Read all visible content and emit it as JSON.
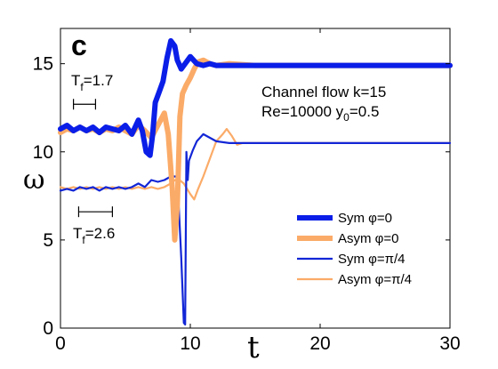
{
  "chart_data": {
    "type": "line",
    "panel_label": "c",
    "xlabel": "t",
    "ylabel": "ω",
    "xlim": [
      0,
      30
    ],
    "ylim": [
      0,
      17
    ],
    "xticks": [
      0,
      10,
      20,
      30
    ],
    "yticks": [
      0,
      5,
      10,
      15
    ],
    "annotations": {
      "flow_line1": "Channel flow k=15",
      "flow_line2_prefix": "Re=10000 y",
      "flow_line2_sub": "0",
      "flow_line2_suffix": "=0.5",
      "period_top_prefix": "T",
      "period_top_sub": "f",
      "period_top_value": "=1.7",
      "period_bottom_prefix": "T",
      "period_bottom_sub": "f",
      "period_bottom_value": "=2.6"
    },
    "period_markers": [
      {
        "name": "top",
        "x_start": 1.0,
        "x_end": 2.7,
        "y": 12.7
      },
      {
        "name": "bottom",
        "x_start": 1.4,
        "x_end": 4.0,
        "y": 6.6
      }
    ],
    "series": [
      {
        "name": "Sym φ=0",
        "color": "#0a1ee8",
        "width": "thick",
        "x": [
          0,
          0.5,
          1,
          1.5,
          2,
          2.5,
          3,
          3.5,
          4,
          4.5,
          5,
          5.5,
          6,
          6.3,
          6.6,
          6.9,
          7.1,
          7.3,
          7.6,
          7.9,
          8.2,
          8.5,
          8.8,
          9.0,
          9.3,
          9.6,
          10,
          10.5,
          11,
          11.5,
          12,
          13,
          15,
          20,
          25,
          30
        ],
        "y": [
          11.3,
          11.5,
          11.2,
          11.4,
          11.2,
          11.4,
          11.1,
          11.4,
          11.3,
          11.2,
          11.5,
          11.0,
          11.8,
          11.2,
          10.0,
          9.8,
          11.0,
          12.8,
          13.4,
          14.0,
          15.3,
          16.3,
          16.0,
          15.2,
          14.7,
          15.0,
          15.4,
          15.0,
          14.9,
          15.0,
          14.9,
          14.9,
          14.9,
          14.9,
          14.9,
          14.9
        ]
      },
      {
        "name": "Asym φ=0",
        "color": "#fbab68",
        "width": "thick",
        "x": [
          0,
          0.5,
          1,
          1.5,
          2,
          2.5,
          3,
          3.5,
          4,
          4.5,
          5,
          5.5,
          6,
          6.5,
          7,
          7.5,
          8,
          8.3,
          8.6,
          8.8,
          9.0,
          9.2,
          9.4,
          9.7,
          10,
          10.3,
          10.6,
          11.0,
          11.5,
          12,
          13,
          15,
          20,
          25,
          30
        ],
        "y": [
          11.1,
          11.3,
          11.2,
          11.4,
          11.2,
          11.3,
          11.1,
          11.3,
          11.2,
          11.4,
          11.2,
          11.0,
          11.5,
          11.2,
          10.8,
          11.5,
          12.2,
          11.0,
          8.0,
          5.0,
          7.0,
          12.0,
          13.3,
          13.8,
          14.2,
          14.7,
          15.1,
          15.2,
          15.0,
          14.9,
          15.0,
          14.9,
          14.9,
          14.9,
          14.9
        ]
      },
      {
        "name": "Sym φ=π/4",
        "color": "#1226d6",
        "width": "thin",
        "x": [
          0,
          0.5,
          1,
          1.5,
          2,
          2.5,
          3,
          3.5,
          4,
          4.5,
          5,
          5.5,
          6,
          6.5,
          7,
          7.5,
          8,
          8.5,
          9.0,
          9.3,
          9.5,
          9.6,
          9.7,
          9.8,
          9.9,
          10.2,
          10.5,
          11,
          11.5,
          12,
          13,
          15,
          20,
          25,
          30
        ],
        "y": [
          7.8,
          7.9,
          7.8,
          8.0,
          7.9,
          8.0,
          7.8,
          8.0,
          7.9,
          8.0,
          7.9,
          8.0,
          8.2,
          8.0,
          8.4,
          8.3,
          8.4,
          8.6,
          8.6,
          4.0,
          0.3,
          0.2,
          10.0,
          8.4,
          9.5,
          10.1,
          10.6,
          11.0,
          10.8,
          10.6,
          10.5,
          10.5,
          10.5,
          10.5,
          10.5
        ]
      },
      {
        "name": "Asym φ=π/4",
        "color": "#fbab68",
        "width": "thin",
        "x": [
          0,
          0.5,
          1,
          1.5,
          2,
          2.5,
          3,
          3.5,
          4,
          4.5,
          5,
          5.5,
          6,
          6.5,
          7,
          7.5,
          8,
          8.5,
          9.0,
          9.5,
          10,
          10.3,
          10.6,
          11,
          11.5,
          12,
          12.5,
          12.8,
          13.2,
          13.6,
          14,
          15,
          20,
          25,
          30
        ],
        "y": [
          8.0,
          7.9,
          8.0,
          7.9,
          8.0,
          7.9,
          8.0,
          7.9,
          8.0,
          7.9,
          8.0,
          7.9,
          8.0,
          7.9,
          8.0,
          7.9,
          8.0,
          8.2,
          8.5,
          8.2,
          7.6,
          7.3,
          7.9,
          8.6,
          9.6,
          10.6,
          11.0,
          11.3,
          10.9,
          10.4,
          10.5,
          10.5,
          10.5,
          10.5,
          10.5
        ]
      }
    ],
    "legend_placement": "bottom-right",
    "grid": false
  }
}
